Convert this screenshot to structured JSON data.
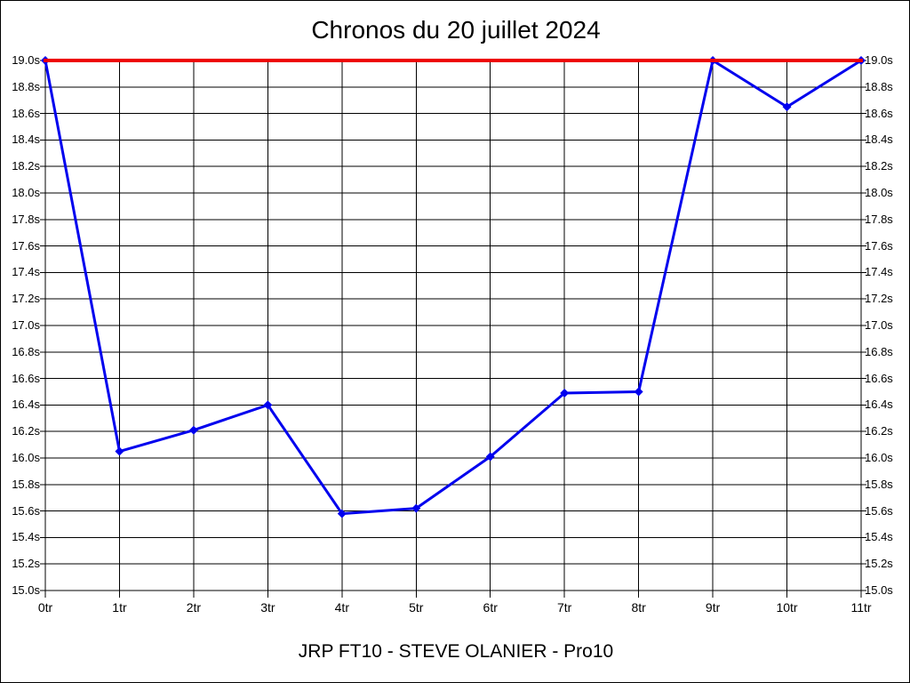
{
  "window": {
    "background_color": "#ffffff",
    "border_color": "#000000"
  },
  "chart_data": {
    "type": "line",
    "title": "Chronos du 20 juillet 2024",
    "footer": "JRP FT10 - STEVE OLANIER - Pro10",
    "x_unit": "tr",
    "categories": [
      "0tr",
      "1tr",
      "2tr",
      "3tr",
      "4tr",
      "5tr",
      "6tr",
      "7tr",
      "8tr",
      "9tr",
      "10tr",
      "11tr"
    ],
    "series": [
      {
        "name": "chrono-par-tour",
        "type": "line",
        "color": "#0000ee",
        "marker": "diamond",
        "values": [
          19.0,
          16.05,
          16.21,
          16.4,
          15.58,
          15.62,
          16.01,
          16.49,
          16.5,
          19.0,
          18.65,
          19.0
        ]
      },
      {
        "name": "plafond-19s",
        "type": "hline",
        "color": "#ee0000",
        "value": 19.0
      }
    ],
    "ylim": [
      15.0,
      19.0
    ],
    "y_tick_step": 0.2,
    "y_tick_values": [
      19.0,
      18.8,
      18.6,
      18.4,
      18.2,
      18.0,
      17.8,
      17.6,
      17.4,
      17.2,
      17.0,
      16.8,
      16.6,
      16.4,
      16.2,
      16.0,
      15.8,
      15.6,
      15.4,
      15.2,
      15.0
    ],
    "y_tick_labels": [
      "19.0s",
      "18.8s",
      "18.6s",
      "18.4s",
      "18.2s",
      "18.0s",
      "17.8s",
      "17.6s",
      "17.4s",
      "17.2s",
      "17.0s",
      "16.8s",
      "16.6s",
      "16.4s",
      "16.2s",
      "16.0s",
      "15.8s",
      "15.6s",
      "15.4s",
      "15.2s",
      "15.0s"
    ],
    "grid": true,
    "grid_color": "#000000",
    "legend": "none",
    "y_labels_both_sides": true
  }
}
